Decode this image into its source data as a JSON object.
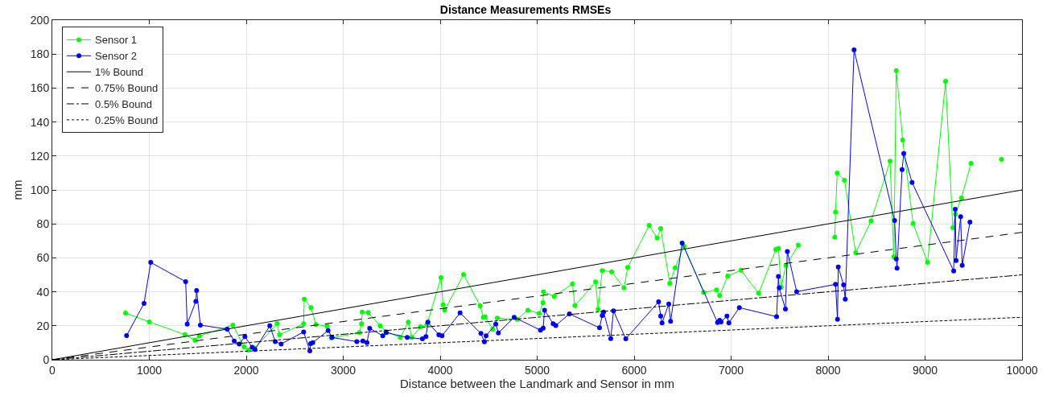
{
  "chart_data": {
    "type": "line",
    "title": "Distance Measurements RMSEs",
    "xlabel": "Distance between the Landmark and Sensor in mm",
    "ylabel": "mm",
    "xlim": [
      0,
      10000
    ],
    "xticks": [
      0,
      1000,
      2000,
      3000,
      4000,
      5000,
      6000,
      7000,
      8000,
      9000,
      10000
    ],
    "ylim": [
      0,
      200
    ],
    "yticks": [
      0,
      20,
      40,
      60,
      80,
      100,
      120,
      140,
      160,
      180,
      200
    ],
    "grid": true,
    "legend": "top left",
    "series": [
      {
        "name": "Sensor 1",
        "color": "#00ff00",
        "marker": "circle",
        "line_style": "solid",
        "x": [
          755,
          1000,
          1369,
          1471,
          1516,
          1862,
          1978,
          2020,
          2088,
          2318,
          2343,
          2592,
          2598,
          2667,
          2719,
          2835,
          2877,
          3167,
          3189,
          3195,
          3258,
          3383,
          3439,
          3588,
          3671,
          3707,
          3798,
          3864,
          4008,
          4030,
          4047,
          4241,
          4412,
          4445,
          4462,
          4542,
          4589,
          4794,
          4904,
          5021,
          5060,
          5065,
          5176,
          5364,
          5389,
          5602,
          5629,
          5671,
          5768,
          5895,
          5934,
          6155,
          6238,
          6274,
          6368,
          6423,
          6515,
          6716,
          6849,
          6882,
          6965,
          7101,
          7284,
          7461,
          7488,
          7516,
          7566,
          7693,
          7700,
          8055,
          8069,
          8077,
          8094,
          8169,
          8285,
          8443,
          8639,
          8678,
          8703,
          8769,
          8877,
          9026,
          9212,
          9286,
          9314,
          9375,
          9474,
          9494,
          9770,
          9787
        ],
        "values": [
          27.5,
          22.3,
          14.8,
          11.5,
          14,
          20.4,
          7.6,
          5.7,
          6.8,
          21.3,
          14.7,
          21.2,
          35.7,
          30.7,
          20.7,
          19.8,
          12.8,
          16,
          21.2,
          28.1,
          27.8,
          19.9,
          16.7,
          13.1,
          22.1,
          13.1,
          19.4,
          21,
          48.3,
          32.4,
          29.1,
          50.2,
          31.8,
          25,
          25.4,
          18,
          24.5,
          23.8,
          29.2,
          27.3,
          33.6,
          40.1,
          37.3,
          44.7,
          31.9,
          45.8,
          29.7,
          52.5,
          51.8,
          42.3,
          54.4,
          79.1,
          71.7,
          77.3,
          44.9,
          54.2,
          66.8,
          39.7,
          41.1,
          37.8,
          49.3,
          52.7,
          39.2,
          64.9,
          65.5,
          42.8,
          55.5,
          67.4,
          null,
          null,
          72.2,
          87,
          110,
          105.7,
          63,
          81.7,
          116.9,
          60.7,
          170.3,
          129.4,
          80.2,
          57.3,
          164,
          77.7,
          85.8,
          95.3,
          115.6,
          null,
          null,
          118
        ]
      },
      {
        "name": "Sensor 2",
        "color": "#0000ff",
        "marker": "circle",
        "line_style": "solid",
        "x": [
          766,
          946,
          1015,
          1375,
          1391,
          1480,
          1488,
          1527,
          1804,
          1876,
          1928,
          1986,
          2061,
          2089,
          2243,
          2299,
          2360,
          2592,
          2656,
          2664,
          2686,
          2844,
          2885,
          3140,
          3203,
          3245,
          3273,
          3408,
          3444,
          3660,
          3817,
          3853,
          3873,
          3986,
          4019,
          4205,
          4420,
          4456,
          4473,
          4573,
          4600,
          4763,
          5034,
          5062,
          5076,
          5165,
          5192,
          5333,
          5643,
          5671,
          5685,
          5759,
          5787,
          5914,
          6252,
          6274,
          6288,
          6357,
          6376,
          6495,
          6860,
          6882,
          6896,
          6957,
          6977,
          7085,
          7469,
          7488,
          7496,
          7560,
          7580,
          7676,
          8077,
          8097,
          8105,
          8160,
          8177,
          8268,
          8686,
          8703,
          8711,
          8763,
          8780,
          8866,
          9295,
          9311,
          9320,
          9367,
          9383,
          9463
        ],
        "values": [
          14.2,
          33.2,
          57.3,
          46,
          21,
          34.4,
          40.8,
          20.4,
          18,
          11,
          9.2,
          13.6,
          7.3,
          6,
          20,
          10.7,
          9.3,
          16.4,
          5.2,
          9.5,
          10.1,
          17.2,
          13.1,
          10.7,
          11,
          10.1,
          18.5,
          14.1,
          16,
          13.1,
          12.3,
          13.6,
          22.1,
          14.7,
          14.1,
          27.6,
          15.5,
          10.6,
          14.1,
          21,
          15.8,
          25,
          17.4,
          18.6,
          29.2,
          21.2,
          20.2,
          27,
          18.8,
          26.1,
          28.1,
          12.5,
          28.8,
          12.3,
          34.1,
          25.7,
          21.7,
          32.8,
          22.6,
          68.7,
          21.9,
          23.2,
          22.3,
          25.7,
          21.7,
          30.7,
          25.4,
          49.1,
          42.3,
          29.9,
          63.8,
          40.1,
          44.4,
          23.8,
          54.6,
          44.1,
          35.7,
          182.5,
          82,
          59.4,
          53.9,
          112,
          121.5,
          104.4,
          52.3,
          88.6,
          58.4,
          84.2,
          55.6,
          81
        ]
      },
      {
        "name": "1% Bound",
        "color": "#000000",
        "marker": "none",
        "line_style": "solid",
        "x": [
          0,
          10000
        ],
        "values": [
          0,
          100
        ]
      },
      {
        "name": "0.75% Bound",
        "color": "#000000",
        "marker": "none",
        "line_style": "dashed",
        "x": [
          0,
          10000
        ],
        "values": [
          0,
          75
        ]
      },
      {
        "name": "0.5% Bound",
        "color": "#000000",
        "marker": "none",
        "line_style": "dashdot",
        "x": [
          0,
          10000
        ],
        "values": [
          0,
          50
        ]
      },
      {
        "name": "0.25% Bound",
        "color": "#000000",
        "marker": "none",
        "line_style": "dotted",
        "x": [
          0,
          10000
        ],
        "values": [
          0,
          25
        ]
      }
    ]
  }
}
